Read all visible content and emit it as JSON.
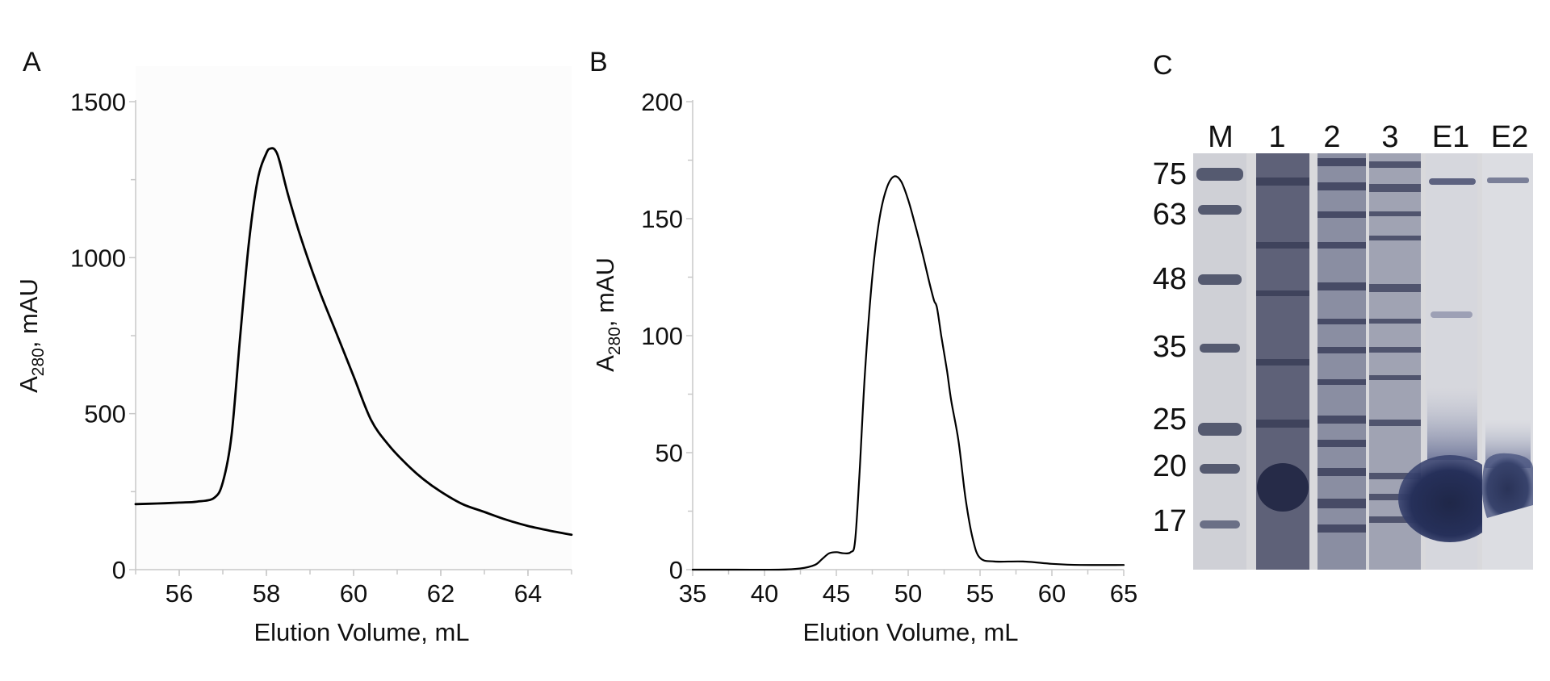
{
  "chart_data": [
    {
      "panel": "A",
      "type": "line",
      "xlabel": "Elution Volume, mL",
      "ylabel_main": "A",
      "ylabel_sub": "280",
      "ylabel_rest": ", mAU",
      "xlim": [
        55,
        65
      ],
      "ylim": [
        0,
        1500
      ],
      "xticks": [
        56,
        58,
        60,
        62,
        64
      ],
      "yticks": [
        0,
        500,
        1000,
        1500
      ],
      "minor_x": [
        55,
        56,
        57,
        58,
        59,
        60,
        61,
        62,
        63,
        64,
        65
      ],
      "minor_y": [
        250,
        750,
        1250
      ],
      "series": [
        {
          "x": [
            55.0,
            55.5,
            56.0,
            56.4,
            56.8,
            57.0,
            57.2,
            57.4,
            57.6,
            57.8,
            58.0,
            58.1,
            58.2,
            58.3,
            58.5,
            58.8,
            59.2,
            59.6,
            60.0,
            60.4,
            60.8,
            61.2,
            61.6,
            62.0,
            62.5,
            63.0,
            63.5,
            64.0,
            64.5,
            65.0
          ],
          "y": [
            210,
            212,
            215,
            218,
            230,
            280,
            430,
            750,
            1050,
            1250,
            1335,
            1350,
            1345,
            1310,
            1200,
            1060,
            900,
            760,
            620,
            480,
            400,
            340,
            290,
            250,
            210,
            185,
            160,
            140,
            125,
            112
          ]
        }
      ]
    },
    {
      "panel": "B",
      "type": "line",
      "xlabel": "Elution Volume, mL",
      "ylabel_main": "A",
      "ylabel_sub": "280",
      "ylabel_rest": ", mAU",
      "xlim": [
        35,
        65
      ],
      "ylim": [
        0,
        200
      ],
      "xticks": [
        35,
        40,
        45,
        50,
        55,
        60,
        65
      ],
      "yticks": [
        0,
        50,
        100,
        150,
        200
      ],
      "minor_x": [
        37.5,
        42.5,
        47.5,
        52.5,
        57.5,
        62.5
      ],
      "minor_y": [
        25,
        75,
        125,
        175
      ],
      "series": [
        {
          "x": [
            35,
            38,
            41,
            42.5,
            43.5,
            44.0,
            44.5,
            45.0,
            45.5,
            46.0,
            46.3,
            46.6,
            47.0,
            47.5,
            48.0,
            48.5,
            49.0,
            49.5,
            50.0,
            50.5,
            51.0,
            51.5,
            51.8,
            52.0,
            52.3,
            52.7,
            53.0,
            53.5,
            54.0,
            54.5,
            55.0,
            56.0,
            58.0,
            60.0,
            62.0,
            65.0
          ],
          "y": [
            0,
            0,
            0,
            0.5,
            2,
            4.5,
            7,
            7.5,
            7,
            7.5,
            12,
            40,
            85,
            125,
            150,
            163,
            168,
            166,
            158,
            147,
            135,
            122,
            115,
            112,
            100,
            85,
            72,
            55,
            30,
            13,
            5,
            3.5,
            3.5,
            2.5,
            2,
            2
          ]
        }
      ]
    }
  ],
  "panels": {
    "a": "A",
    "b": "B",
    "c": "C"
  },
  "gel": {
    "lanes": [
      "M",
      "1",
      "2",
      "3",
      "E1",
      "E2"
    ],
    "markers": [
      "75",
      "63",
      "48",
      "35",
      "25",
      "20",
      "17"
    ]
  }
}
